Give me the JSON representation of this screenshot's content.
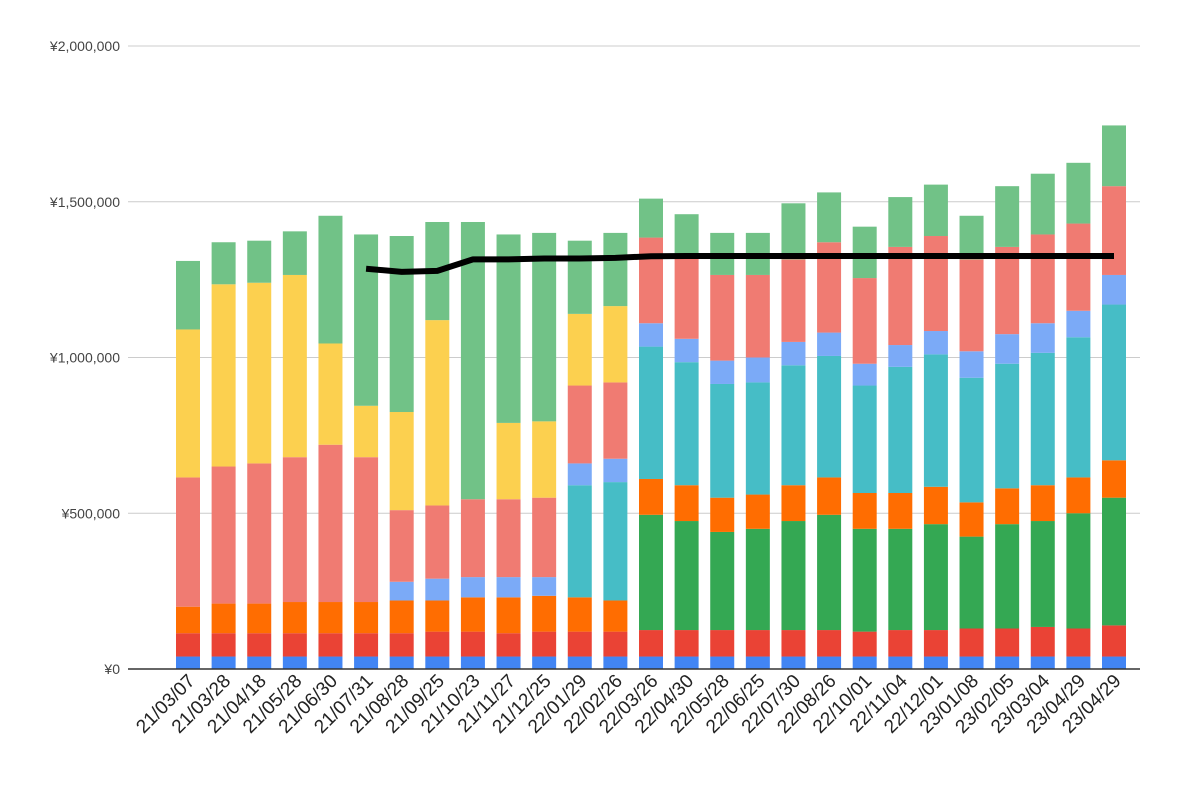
{
  "chart_data": {
    "type": "bar",
    "stacked": true,
    "categories": [
      "21/03/07",
      "21/03/28",
      "21/04/18",
      "21/05/28",
      "21/06/30",
      "21/07/31",
      "21/08/28",
      "21/09/25",
      "21/10/23",
      "21/11/27",
      "21/12/25",
      "22/01/29",
      "22/02/26",
      "22/03/26",
      "22/04/30",
      "22/05/28",
      "22/06/25",
      "22/07/30",
      "22/08/26",
      "22/10/01",
      "22/11/04",
      "22/12/01",
      "23/01/08",
      "23/02/05",
      "23/03/04",
      "23/04/29",
      "23/04/29"
    ],
    "ylim": [
      0,
      2000000
    ],
    "yticks": [
      0,
      500000,
      1000000,
      1500000,
      2000000
    ],
    "ytick_labels": [
      "¥0",
      "¥500,000",
      "¥1,000,000",
      "¥1,500,000",
      "¥2,000,000"
    ],
    "grid": true,
    "series": [
      {
        "color": "#4285f4",
        "values": [
          40000,
          40000,
          40000,
          40000,
          40000,
          40000,
          40000,
          40000,
          40000,
          40000,
          40000,
          40000,
          40000,
          40000,
          40000,
          40000,
          40000,
          40000,
          40000,
          40000,
          40000,
          40000,
          40000,
          40000,
          40000,
          40000,
          40000
        ]
      },
      {
        "color": "#ea4335",
        "values": [
          75000,
          75000,
          75000,
          75000,
          75000,
          75000,
          75000,
          80000,
          80000,
          75000,
          80000,
          80000,
          80000,
          85000,
          85000,
          85000,
          85000,
          85000,
          85000,
          80000,
          85000,
          85000,
          90000,
          90000,
          95000,
          90000,
          100000
        ]
      },
      {
        "color": "#34a853",
        "values": [
          0,
          0,
          0,
          0,
          0,
          0,
          0,
          0,
          0,
          0,
          0,
          0,
          0,
          370000,
          350000,
          315000,
          325000,
          350000,
          370000,
          330000,
          325000,
          340000,
          295000,
          335000,
          340000,
          370000,
          410000
        ]
      },
      {
        "color": "#ff6d01",
        "values": [
          85000,
          95000,
          95000,
          100000,
          100000,
          100000,
          105000,
          100000,
          110000,
          115000,
          115000,
          110000,
          100000,
          115000,
          115000,
          110000,
          110000,
          115000,
          120000,
          115000,
          115000,
          120000,
          110000,
          115000,
          115000,
          115000,
          120000
        ]
      },
      {
        "color": "#46bdc6",
        "values": [
          0,
          0,
          0,
          0,
          0,
          0,
          0,
          0,
          0,
          0,
          0,
          360000,
          380000,
          425000,
          395000,
          365000,
          360000,
          385000,
          390000,
          345000,
          405000,
          425000,
          400000,
          400000,
          425000,
          450000,
          500000
        ]
      },
      {
        "color": "#7baaf7",
        "values": [
          0,
          0,
          0,
          0,
          0,
          0,
          60000,
          70000,
          65000,
          65000,
          60000,
          70000,
          75000,
          75000,
          75000,
          75000,
          80000,
          75000,
          75000,
          70000,
          70000,
          75000,
          85000,
          95000,
          95000,
          85000,
          95000
        ]
      },
      {
        "color": "#f07b72",
        "values": [
          415000,
          440000,
          450000,
          465000,
          505000,
          465000,
          230000,
          235000,
          250000,
          250000,
          255000,
          250000,
          245000,
          275000,
          265000,
          275000,
          265000,
          265000,
          290000,
          275000,
          315000,
          305000,
          295000,
          280000,
          285000,
          280000,
          285000
        ]
      },
      {
        "color": "#fcd04f",
        "values": [
          475000,
          585000,
          580000,
          585000,
          325000,
          165000,
          315000,
          595000,
          0,
          245000,
          245000,
          230000,
          245000,
          0,
          0,
          0,
          0,
          0,
          0,
          0,
          0,
          0,
          0,
          0,
          0,
          0,
          0
        ]
      },
      {
        "color": "#71c287",
        "values": [
          220000,
          135000,
          135000,
          140000,
          410000,
          550000,
          565000,
          315000,
          890000,
          605000,
          605000,
          235000,
          235000,
          125000,
          135000,
          135000,
          135000,
          180000,
          160000,
          165000,
          160000,
          165000,
          140000,
          195000,
          195000,
          195000,
          195000
        ]
      }
    ],
    "line": {
      "color": "#000000",
      "values": [
        null,
        null,
        null,
        null,
        null,
        1285000,
        1275000,
        1278000,
        1315000,
        1315000,
        1318000,
        1318000,
        1320000,
        1325000,
        1326000,
        1326000,
        1326000,
        1326000,
        1326000,
        1326000,
        1326000,
        1326000,
        1326000,
        1326000,
        1326000,
        1326000,
        1326000
      ]
    }
  }
}
